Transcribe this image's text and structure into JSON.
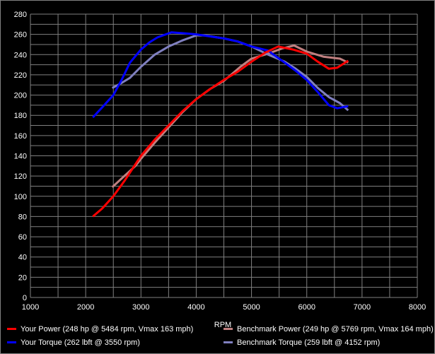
{
  "chart_data": {
    "type": "line",
    "title": "",
    "xlabel": "RPM",
    "ylabel": "",
    "xlim": [
      1000,
      8000
    ],
    "ylim": [
      0,
      280
    ],
    "grid": true,
    "x_ticks": [
      "1000",
      "2000",
      "3000",
      "4000",
      "5000",
      "6000",
      "7000",
      "8000"
    ],
    "y_ticks": [
      "0",
      "20",
      "40",
      "60",
      "80",
      "100",
      "120",
      "140",
      "160",
      "180",
      "200",
      "220",
      "240",
      "260",
      "280"
    ],
    "legend_position": "bottom",
    "series": [
      {
        "name": "Your Power (248 hp @ 5484 rpm, Vmax 163 mph)",
        "color": "#ff0000",
        "x": [
          2130,
          2300,
          2500,
          2700,
          3000,
          3250,
          3500,
          3750,
          4000,
          4250,
          4500,
          4750,
          5000,
          5250,
          5484,
          5750,
          6000,
          6200,
          6400,
          6550,
          6750
        ],
        "y": [
          80,
          88,
          100,
          115,
          140,
          156,
          170,
          184,
          196,
          206,
          215,
          223,
          233,
          242,
          248,
          245,
          241,
          233,
          226,
          227,
          234
        ]
      },
      {
        "name": "Your Torque (262 lbft @ 3550 rpm)",
        "color": "#0000ff",
        "x": [
          2130,
          2300,
          2500,
          2650,
          2800,
          3000,
          3150,
          3300,
          3550,
          3800,
          4000,
          4250,
          4500,
          4750,
          5000,
          5300,
          5600,
          5800,
          6000,
          6200,
          6400,
          6550,
          6750
        ],
        "y": [
          178,
          188,
          200,
          215,
          232,
          245,
          252,
          257,
          262,
          261,
          260,
          258,
          256,
          253,
          248,
          244,
          232,
          224,
          215,
          203,
          190,
          187,
          189
        ]
      },
      {
        "name": "Benchmark Power (249 hp @ 5769 rpm, Vmax 164 mph)",
        "color": "#c08080",
        "x": [
          2480,
          2700,
          2900,
          3000,
          3250,
          3500,
          3750,
          4000,
          4250,
          4500,
          4800,
          5000,
          5300,
          5550,
          5769,
          6000,
          6300,
          6600,
          6750
        ],
        "y": [
          109,
          120,
          130,
          137,
          153,
          168,
          183,
          196,
          206,
          214,
          228,
          236,
          241,
          246,
          249,
          243,
          238,
          236,
          232
        ]
      },
      {
        "name": "Benchmark Torque (259 lbft @ 4152 rpm)",
        "color": "#8080c0",
        "x": [
          2480,
          2650,
          2800,
          3000,
          3250,
          3500,
          3750,
          4000,
          4152,
          4500,
          4750,
          5000,
          5300,
          5600,
          5800,
          6000,
          6200,
          6400,
          6600,
          6750
        ],
        "y": [
          207,
          212,
          217,
          228,
          240,
          248,
          254,
          259,
          259,
          256,
          253,
          248,
          240,
          233,
          226,
          218,
          207,
          198,
          192,
          185
        ]
      }
    ]
  }
}
